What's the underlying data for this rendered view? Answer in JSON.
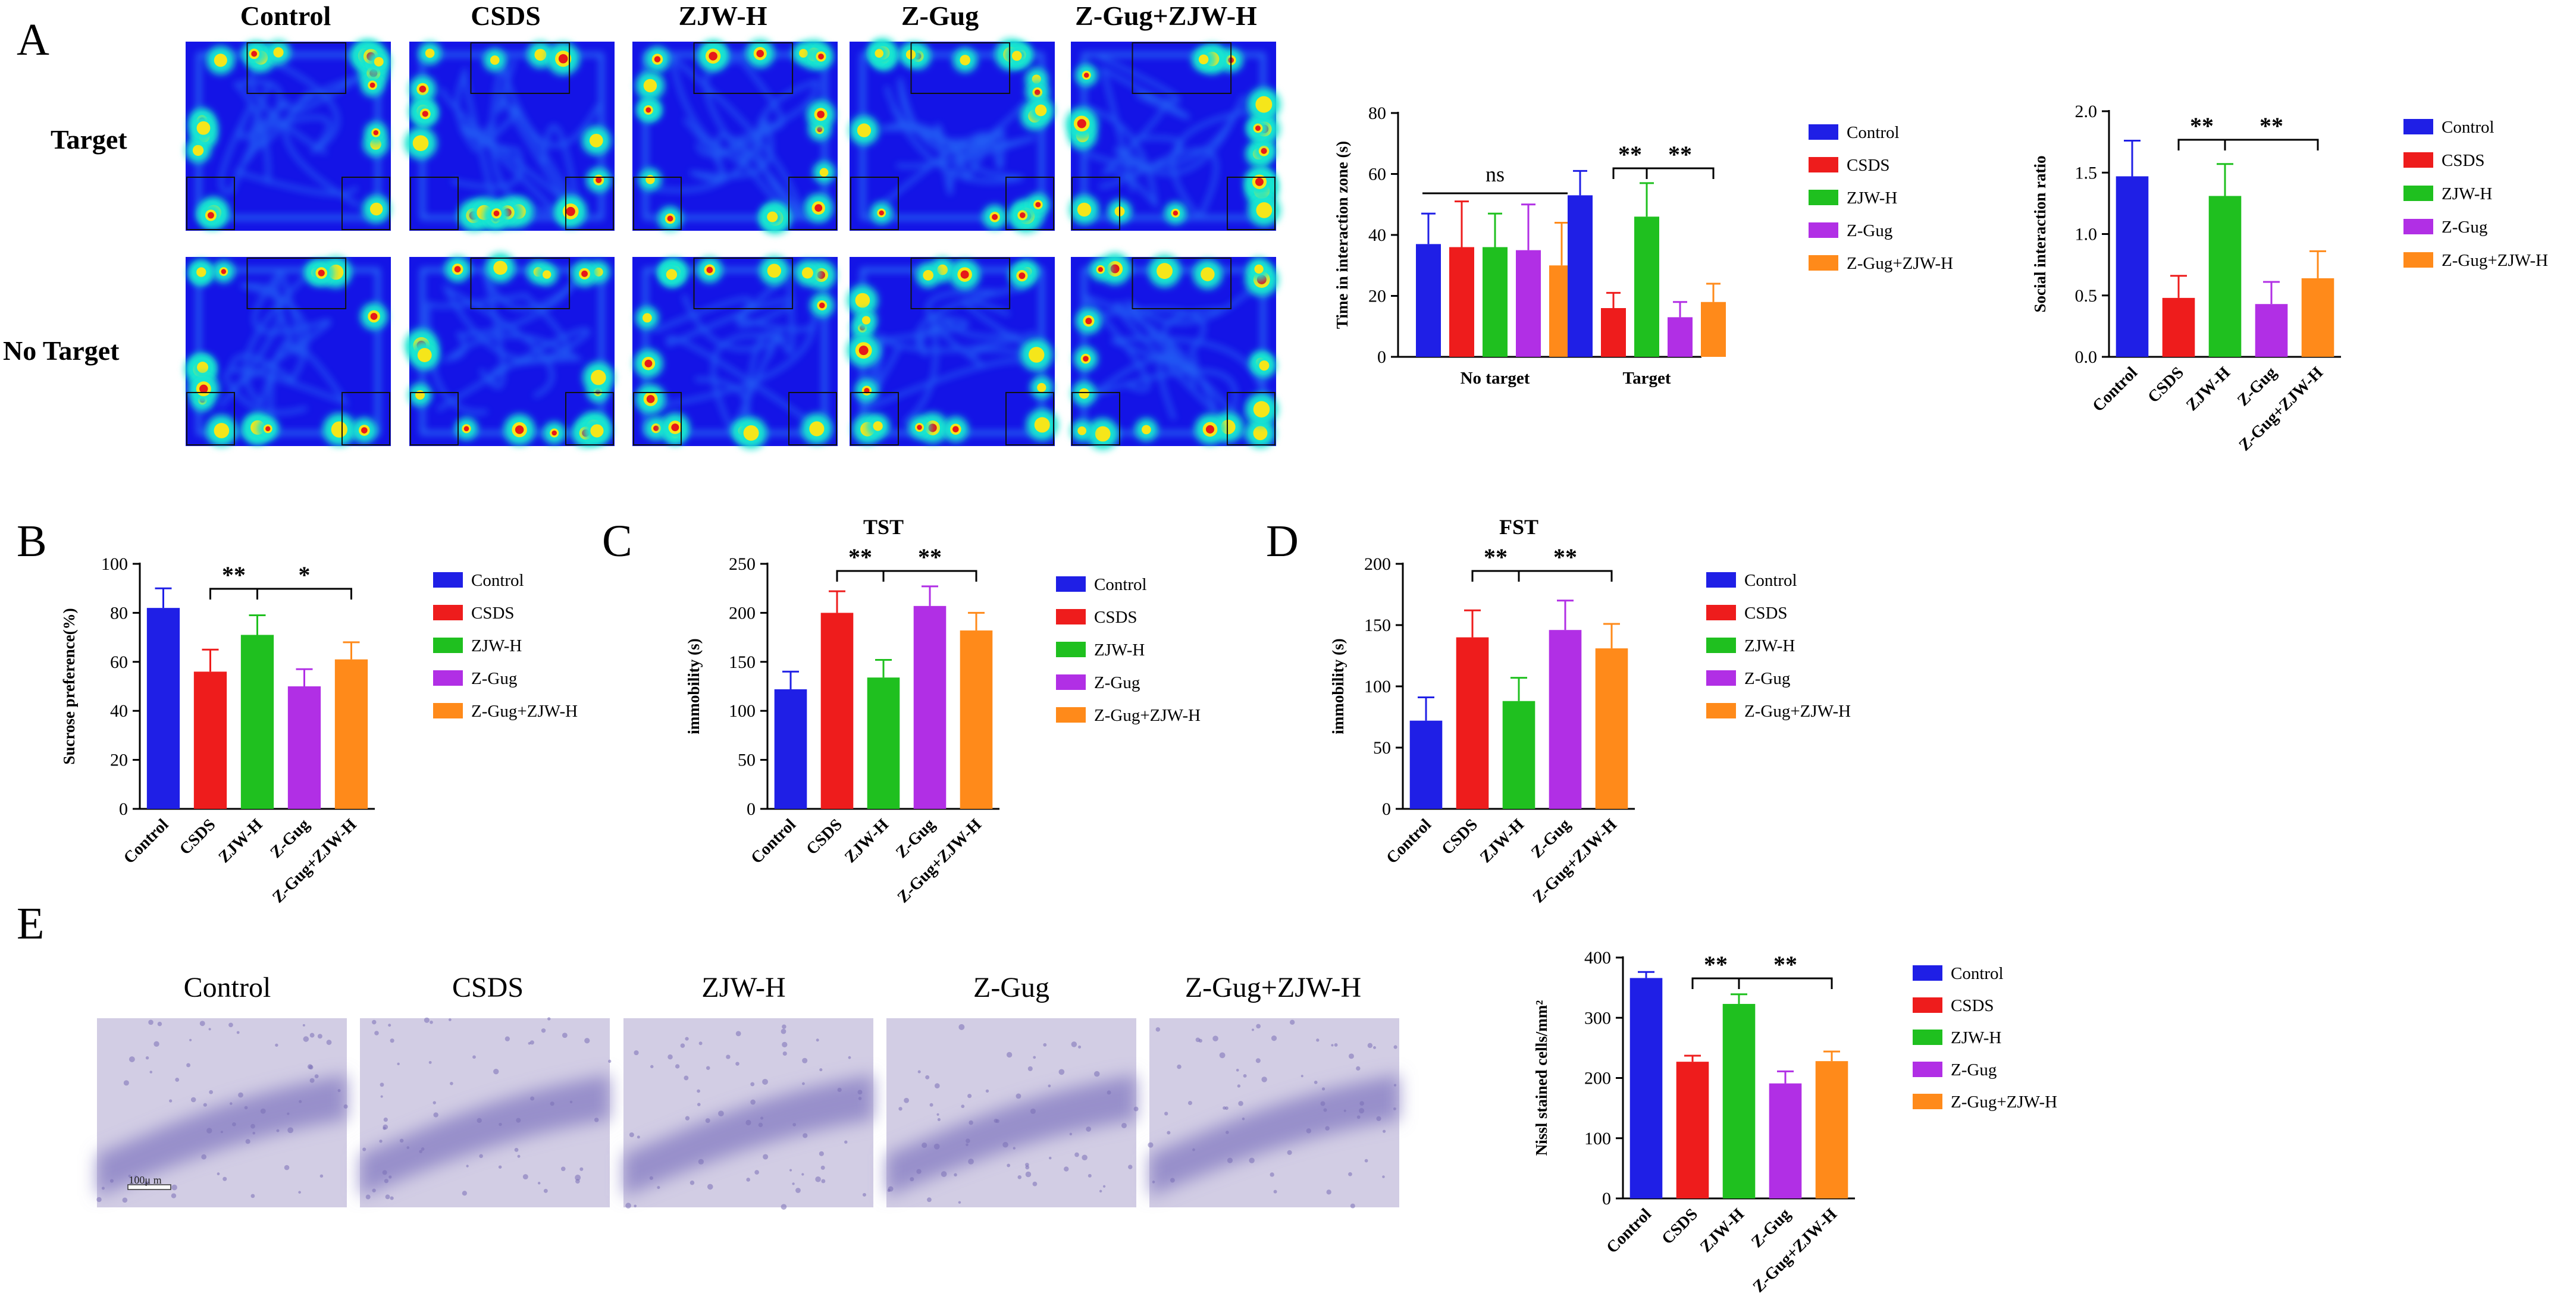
{
  "panel_letters": [
    "A",
    "B",
    "C",
    "D",
    "E"
  ],
  "group_names": [
    "Control",
    "CSDS",
    "ZJW-H",
    "Z-Gug",
    "Z-Gug+ZJW-H"
  ],
  "colors": {
    "Control": "#1f1fe6",
    "CSDS": "#ee1c1c",
    "ZJW-H": "#1fc01f",
    "Z-Gug": "#b12fe5",
    "Z-Gug+ZJW-H": "#ff8a1a",
    "heat_bg": "#1414e6"
  },
  "heatmap": {
    "row_labels": [
      "Target",
      "No Target"
    ],
    "column_labels": [
      "Control",
      "CSDS",
      "ZJW-H",
      "Z-Gug",
      "Z-Gug+ZJW-H"
    ]
  },
  "micrographs": {
    "labels": [
      "Control",
      "CSDS",
      "ZJW-H",
      "Z-Gug",
      "Z-Gug+ZJW-H"
    ],
    "scale_bar": "100μ m"
  },
  "chart_data": [
    {
      "id": "interaction_zone",
      "type": "bar",
      "title": "",
      "ylabel": "Time in interaction zone (s)",
      "xlabel": "",
      "ylim": [
        0,
        80
      ],
      "yticks": [
        0,
        20,
        40,
        60,
        80
      ],
      "categories": [
        "No target",
        "Target"
      ],
      "series": [
        {
          "name": "Control",
          "values": [
            37,
            53
          ],
          "errors": [
            10,
            8
          ]
        },
        {
          "name": "CSDS",
          "values": [
            36,
            16
          ],
          "errors": [
            15,
            5
          ]
        },
        {
          "name": "ZJW-H",
          "values": [
            36,
            46
          ],
          "errors": [
            11,
            11
          ]
        },
        {
          "name": "Z-Gug",
          "values": [
            35,
            13
          ],
          "errors": [
            15,
            5
          ]
        },
        {
          "name": "Z-Gug+ZJW-H",
          "values": [
            30,
            18
          ],
          "errors": [
            14,
            6
          ]
        }
      ],
      "annotations": [
        "ns",
        "**",
        "**"
      ],
      "legend": "right"
    },
    {
      "id": "social_ratio",
      "type": "bar",
      "title": "",
      "ylabel": "Social interaction ratio",
      "xlabel": "",
      "ylim": [
        0,
        2.0
      ],
      "yticks": [
        0.0,
        0.5,
        1.0,
        1.5,
        2.0
      ],
      "decimals": 1,
      "categories": [
        "Control",
        "CSDS",
        "ZJW-H",
        "Z-Gug",
        "Z-Gug+ZJW-H"
      ],
      "values": [
        1.47,
        0.48,
        1.31,
        0.43,
        0.64
      ],
      "errors": [
        0.29,
        0.18,
        0.26,
        0.18,
        0.22
      ],
      "annotations": [
        "**",
        "**"
      ],
      "legend": "right"
    },
    {
      "id": "sucrose",
      "type": "bar",
      "title": "",
      "ylabel": "Sucrose preference(%)",
      "xlabel": "",
      "ylim": [
        0,
        100
      ],
      "yticks": [
        0,
        20,
        40,
        60,
        80,
        100
      ],
      "categories": [
        "Control",
        "CSDS",
        "ZJW-H",
        "Z-Gug",
        "Z-Gug+ZJW-H"
      ],
      "values": [
        82,
        56,
        71,
        50,
        61
      ],
      "errors": [
        8,
        9,
        8,
        7,
        7
      ],
      "annotations": [
        "**",
        "*"
      ],
      "legend": "right"
    },
    {
      "id": "tst",
      "type": "bar",
      "title": "TST",
      "ylabel": "immobility (s)",
      "xlabel": "",
      "ylim": [
        0,
        250
      ],
      "yticks": [
        0,
        50,
        100,
        150,
        200,
        250
      ],
      "categories": [
        "Control",
        "CSDS",
        "ZJW-H",
        "Z-Gug",
        "Z-Gug+ZJW-H"
      ],
      "values": [
        122,
        200,
        134,
        207,
        182
      ],
      "errors": [
        18,
        22,
        18,
        20,
        18
      ],
      "annotations": [
        "**",
        "**"
      ],
      "legend": "right"
    },
    {
      "id": "fst",
      "type": "bar",
      "title": "FST",
      "ylabel": "immobility (s)",
      "xlabel": "",
      "ylim": [
        0,
        200
      ],
      "yticks": [
        0,
        50,
        100,
        150,
        200
      ],
      "categories": [
        "Control",
        "CSDS",
        "ZJW-H",
        "Z-Gug",
        "Z-Gug+ZJW-H"
      ],
      "values": [
        72,
        140,
        88,
        146,
        131
      ],
      "errors": [
        19,
        22,
        19,
        24,
        20
      ],
      "annotations": [
        "**",
        "**"
      ],
      "legend": "right"
    },
    {
      "id": "nissl",
      "type": "bar",
      "title": "",
      "ylabel": "Nissl stained cells/mm²",
      "xlabel": "",
      "ylim": [
        0,
        400
      ],
      "yticks": [
        0,
        100,
        200,
        300,
        400
      ],
      "categories": [
        "Control",
        "CSDS",
        "ZJW-H",
        "Z-Gug",
        "Z-Gug+ZJW-H"
      ],
      "values": [
        366,
        227,
        323,
        191,
        228
      ],
      "errors": [
        10,
        10,
        16,
        20,
        16
      ],
      "annotations": [
        "**",
        "**"
      ],
      "legend": "right"
    }
  ]
}
